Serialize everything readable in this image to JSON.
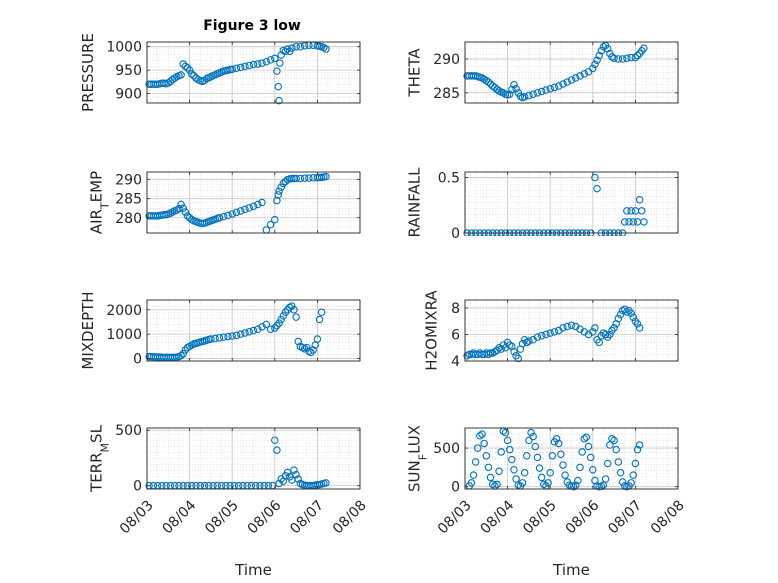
{
  "figure": {
    "title": "Figure 3 low",
    "marker_color": "#0072BD"
  },
  "chart_data": [
    {
      "type": "scatter",
      "ylabel": "PRESSURE",
      "xlim": [
        0,
        5
      ],
      "ylim": [
        880,
        1010
      ],
      "yticks": [
        900,
        950,
        1000
      ],
      "ytick_labels": [
        "900",
        "950",
        "1000"
      ],
      "grid": true,
      "x": [
        0.05,
        0.1,
        0.15,
        0.2,
        0.25,
        0.3,
        0.35,
        0.4,
        0.45,
        0.5,
        0.55,
        0.6,
        0.65,
        0.7,
        0.75,
        0.8,
        0.85,
        0.9,
        0.95,
        1.0,
        1.05,
        1.1,
        1.15,
        1.2,
        1.25,
        1.3,
        1.35,
        1.4,
        1.45,
        1.5,
        1.55,
        1.6,
        1.65,
        1.7,
        1.75,
        1.8,
        1.85,
        1.9,
        1.95,
        2.0,
        2.1,
        2.2,
        2.3,
        2.4,
        2.5,
        2.6,
        2.7,
        2.8,
        2.9,
        3.0,
        3.05,
        3.08,
        3.1,
        3.12,
        3.15,
        3.2,
        3.25,
        3.3,
        3.35,
        3.4,
        3.5,
        3.6,
        3.7,
        3.8,
        3.9,
        4.0,
        4.05,
        4.1,
        4.15,
        4.2
      ],
      "y": [
        920,
        920,
        920,
        920,
        920,
        921,
        922,
        922,
        921,
        923,
        926,
        930,
        933,
        936,
        938,
        940,
        963,
        958,
        955,
        950,
        942,
        938,
        933,
        930,
        928,
        926,
        928,
        932,
        934,
        936,
        938,
        940,
        942,
        944,
        946,
        948,
        949,
        950,
        951,
        952,
        954,
        956,
        958,
        960,
        962,
        963,
        965,
        968,
        972,
        975,
        948,
        915,
        885,
        965,
        982,
        992,
        990,
        995,
        990,
        997,
        1000,
        1000,
        1002,
        1003,
        1003,
        1002,
        1001,
        1000,
        998,
        995
      ]
    },
    {
      "type": "scatter",
      "ylabel": "THETA",
      "xlim": [
        0,
        5
      ],
      "ylim": [
        283.5,
        292.5
      ],
      "yticks": [
        285,
        290
      ],
      "ytick_labels": [
        "285",
        "290"
      ],
      "grid": true,
      "x": [
        0.05,
        0.1,
        0.15,
        0.2,
        0.25,
        0.3,
        0.35,
        0.4,
        0.45,
        0.5,
        0.55,
        0.6,
        0.65,
        0.7,
        0.75,
        0.8,
        0.85,
        0.9,
        0.95,
        1.0,
        1.05,
        1.1,
        1.15,
        1.2,
        1.25,
        1.3,
        1.35,
        1.4,
        1.5,
        1.6,
        1.7,
        1.8,
        1.9,
        2.0,
        2.1,
        2.2,
        2.3,
        2.4,
        2.5,
        2.6,
        2.7,
        2.8,
        2.9,
        3.0,
        3.05,
        3.1,
        3.15,
        3.2,
        3.25,
        3.3,
        3.35,
        3.4,
        3.45,
        3.5,
        3.6,
        3.7,
        3.8,
        3.9,
        4.0,
        4.05,
        4.1,
        4.15,
        4.2
      ],
      "y": [
        287.5,
        287.5,
        287.5,
        287.5,
        287.5,
        287.4,
        287.3,
        287.2,
        287.0,
        286.8,
        286.6,
        286.3,
        286.0,
        285.8,
        285.5,
        285.3,
        285.1,
        285.0,
        284.8,
        284.7,
        284.8,
        285.5,
        286.2,
        285.6,
        285.0,
        284.5,
        284.3,
        284.4,
        284.6,
        284.8,
        285.0,
        285.2,
        285.4,
        285.6,
        285.8,
        286.0,
        286.3,
        286.6,
        286.9,
        287.2,
        287.5,
        287.8,
        288.1,
        288.6,
        289.2,
        289.8,
        290.5,
        291.2,
        291.8,
        292.0,
        291.5,
        290.8,
        290.3,
        290.1,
        290.0,
        290.0,
        290.1,
        290.2,
        290.2,
        290.5,
        290.8,
        291.2,
        291.6
      ]
    },
    {
      "type": "scatter",
      "ylabel": "AIR_TEMP",
      "xlim": [
        0,
        5
      ],
      "ylim": [
        276,
        292
      ],
      "yticks": [
        280,
        285,
        290
      ],
      "ytick_labels": [
        "280",
        "285",
        "290"
      ],
      "grid": true,
      "x": [
        0.05,
        0.1,
        0.15,
        0.2,
        0.25,
        0.3,
        0.35,
        0.4,
        0.45,
        0.5,
        0.55,
        0.6,
        0.65,
        0.7,
        0.75,
        0.8,
        0.85,
        0.9,
        0.95,
        1.0,
        1.05,
        1.1,
        1.15,
        1.2,
        1.25,
        1.3,
        1.35,
        1.4,
        1.45,
        1.5,
        1.55,
        1.6,
        1.65,
        1.7,
        1.8,
        1.9,
        2.0,
        2.1,
        2.2,
        2.3,
        2.4,
        2.5,
        2.6,
        2.7,
        2.8,
        2.9,
        3.0,
        3.05,
        3.08,
        3.1,
        3.15,
        3.2,
        3.25,
        3.3,
        3.35,
        3.4,
        3.45,
        3.5,
        3.6,
        3.7,
        3.8,
        3.9,
        4.0,
        4.05,
        4.1,
        4.15,
        4.2
      ],
      "y": [
        280.5,
        280.5,
        280.5,
        280.5,
        280.5,
        280.6,
        280.7,
        280.8,
        280.8,
        281.0,
        281.2,
        281.5,
        281.8,
        282.0,
        282.4,
        283.5,
        282.5,
        281.5,
        280.5,
        280.0,
        279.5,
        279.2,
        279.0,
        278.8,
        278.6,
        278.5,
        278.6,
        278.8,
        279.0,
        279.2,
        279.4,
        279.6,
        279.8,
        280.0,
        280.3,
        280.6,
        281.0,
        281.4,
        281.8,
        282.2,
        282.6,
        283.0,
        283.5,
        284.0,
        276.8,
        278.2,
        279.5,
        284.5,
        286.0,
        287.0,
        288.0,
        289.0,
        289.5,
        290.0,
        290.2,
        290.3,
        290.3,
        290.3,
        290.3,
        290.4,
        290.4,
        290.5,
        290.5,
        290.6,
        290.6,
        290.7,
        290.8
      ]
    },
    {
      "type": "scatter",
      "ylabel": "RAINFALL",
      "xlim": [
        0,
        5
      ],
      "ylim": [
        0,
        0.55
      ],
      "yticks": [
        0,
        0.5
      ],
      "ytick_labels": [
        "0",
        "0.5"
      ],
      "grid": true,
      "x": [
        0.05,
        0.15,
        0.25,
        0.35,
        0.45,
        0.55,
        0.65,
        0.75,
        0.85,
        0.95,
        1.05,
        1.15,
        1.25,
        1.35,
        1.45,
        1.55,
        1.65,
        1.75,
        1.85,
        1.95,
        2.05,
        2.15,
        2.25,
        2.35,
        2.45,
        2.55,
        2.65,
        2.75,
        2.85,
        2.95,
        3.05,
        3.1,
        3.2,
        3.3,
        3.4,
        3.5,
        3.6,
        3.7,
        3.75,
        3.8,
        3.85,
        3.9,
        3.95,
        4.0,
        4.05,
        4.1,
        4.15,
        4.2
      ],
      "y": [
        0,
        0,
        0,
        0,
        0,
        0,
        0,
        0,
        0,
        0,
        0,
        0,
        0,
        0,
        0,
        0,
        0,
        0,
        0,
        0,
        0,
        0,
        0,
        0,
        0,
        0,
        0,
        0,
        0,
        0,
        0.5,
        0.4,
        0,
        0,
        0,
        0,
        0,
        0,
        0.1,
        0.2,
        0.1,
        0.2,
        0.1,
        0.2,
        0.1,
        0.3,
        0.2,
        0.1
      ]
    },
    {
      "type": "scatter",
      "ylabel": "MIXDEPTH",
      "xlim": [
        0,
        5
      ],
      "ylim": [
        -100,
        2400
      ],
      "yticks": [
        0,
        1000,
        2000
      ],
      "ytick_labels": [
        "0",
        "1000",
        "2000"
      ],
      "grid": true,
      "x": [
        0.05,
        0.1,
        0.15,
        0.2,
        0.25,
        0.3,
        0.35,
        0.4,
        0.45,
        0.5,
        0.55,
        0.6,
        0.65,
        0.7,
        0.75,
        0.8,
        0.85,
        0.9,
        0.95,
        1.0,
        1.05,
        1.1,
        1.15,
        1.2,
        1.25,
        1.3,
        1.35,
        1.4,
        1.45,
        1.5,
        1.6,
        1.7,
        1.8,
        1.9,
        2.0,
        2.1,
        2.2,
        2.3,
        2.4,
        2.5,
        2.6,
        2.7,
        2.8,
        2.9,
        3.0,
        3.05,
        3.1,
        3.15,
        3.2,
        3.25,
        3.3,
        3.35,
        3.4,
        3.45,
        3.5,
        3.55,
        3.6,
        3.65,
        3.7,
        3.75,
        3.8,
        3.85,
        3.9,
        3.95,
        4.0,
        4.05,
        4.1
      ],
      "y": [
        80,
        80,
        75,
        70,
        65,
        60,
        55,
        50,
        50,
        50,
        50,
        50,
        50,
        60,
        80,
        120,
        200,
        350,
        450,
        500,
        550,
        600,
        620,
        650,
        680,
        700,
        720,
        750,
        780,
        800,
        820,
        850,
        880,
        900,
        920,
        950,
        1000,
        1050,
        1100,
        1150,
        1200,
        1300,
        1400,
        1200,
        1250,
        1350,
        1450,
        1600,
        1750,
        1900,
        2000,
        2100,
        2150,
        2000,
        1700,
        700,
        500,
        450,
        400,
        450,
        300,
        250,
        350,
        550,
        800,
        1600,
        1900
      ]
    },
    {
      "type": "scatter",
      "ylabel": "H2OMIXRA",
      "xlim": [
        0,
        5
      ],
      "ylim": [
        4,
        8.6
      ],
      "yticks": [
        4,
        6,
        8
      ],
      "ytick_labels": [
        "4",
        "6",
        "8"
      ],
      "grid": true,
      "x": [
        0.05,
        0.1,
        0.15,
        0.2,
        0.25,
        0.3,
        0.35,
        0.4,
        0.45,
        0.5,
        0.55,
        0.6,
        0.65,
        0.7,
        0.75,
        0.8,
        0.85,
        0.9,
        0.95,
        1.0,
        1.05,
        1.1,
        1.15,
        1.2,
        1.25,
        1.3,
        1.35,
        1.4,
        1.45,
        1.5,
        1.6,
        1.7,
        1.8,
        1.9,
        2.0,
        2.1,
        2.2,
        2.3,
        2.4,
        2.5,
        2.6,
        2.7,
        2.8,
        2.9,
        3.0,
        3.05,
        3.1,
        3.15,
        3.2,
        3.25,
        3.3,
        3.35,
        3.4,
        3.45,
        3.5,
        3.55,
        3.6,
        3.65,
        3.7,
        3.75,
        3.8,
        3.85,
        3.9,
        3.95,
        4.0,
        4.05,
        4.1
      ],
      "y": [
        4.4,
        4.5,
        4.5,
        4.6,
        4.5,
        4.5,
        4.6,
        4.5,
        4.5,
        4.6,
        4.5,
        4.6,
        4.6,
        4.7,
        4.8,
        5.0,
        4.9,
        5.2,
        5.0,
        5.4,
        5.2,
        5.1,
        4.7,
        4.4,
        4.2,
        4.9,
        5.3,
        5.6,
        5.4,
        5.5,
        5.6,
        5.8,
        5.9,
        6.0,
        6.1,
        6.2,
        6.3,
        6.5,
        6.6,
        6.7,
        6.6,
        6.4,
        6.2,
        6.0,
        6.2,
        6.5,
        5.6,
        5.4,
        5.9,
        6.1,
        6.0,
        5.8,
        6.0,
        6.3,
        6.5,
        6.8,
        7.2,
        7.5,
        7.8,
        7.9,
        7.7,
        7.8,
        7.6,
        7.3,
        7.0,
        6.8,
        6.5
      ]
    },
    {
      "type": "scatter",
      "ylabel": "TERR_MSL",
      "xlim": [
        0,
        5
      ],
      "ylim": [
        -30,
        520
      ],
      "yticks": [
        0,
        500
      ],
      "ytick_labels": [
        "0",
        "500"
      ],
      "xticks": [
        0,
        1,
        2,
        3,
        4,
        5
      ],
      "xtick_labels": [
        "08/03",
        "08/04",
        "08/05",
        "08/06",
        "08/07",
        "08/08"
      ],
      "xlabel": "Time",
      "grid": true,
      "x": [
        0.05,
        0.15,
        0.25,
        0.35,
        0.45,
        0.55,
        0.65,
        0.75,
        0.85,
        0.95,
        1.05,
        1.15,
        1.25,
        1.35,
        1.45,
        1.55,
        1.65,
        1.75,
        1.85,
        1.95,
        2.05,
        2.15,
        2.25,
        2.35,
        2.45,
        2.55,
        2.65,
        2.75,
        2.85,
        2.95,
        3.0,
        3.05,
        3.1,
        3.15,
        3.2,
        3.25,
        3.3,
        3.35,
        3.4,
        3.45,
        3.5,
        3.55,
        3.6,
        3.65,
        3.7,
        3.75,
        3.8,
        3.85,
        3.9,
        3.95,
        4.0,
        4.05,
        4.1,
        4.15,
        4.2
      ],
      "y": [
        0,
        0,
        0,
        0,
        0,
        0,
        0,
        0,
        0,
        0,
        0,
        0,
        0,
        0,
        0,
        0,
        0,
        0,
        0,
        0,
        0,
        0,
        0,
        0,
        0,
        0,
        0,
        0,
        0,
        0,
        410,
        320,
        20,
        60,
        40,
        90,
        120,
        80,
        50,
        140,
        100,
        60,
        20,
        10,
        5,
        0,
        0,
        0,
        0,
        5,
        10,
        10,
        15,
        20,
        25
      ]
    },
    {
      "type": "scatter",
      "ylabel": "SUN_FLUX",
      "xlim": [
        0,
        5
      ],
      "ylim": [
        -30,
        760
      ],
      "yticks": [
        0,
        500
      ],
      "ytick_labels": [
        "0",
        "500"
      ],
      "xticks": [
        0,
        1,
        2,
        3,
        4,
        5
      ],
      "xtick_labels": [
        "08/03",
        "08/04",
        "08/05",
        "08/06",
        "08/07",
        "08/08"
      ],
      "xlabel": "Time",
      "grid": true,
      "x": [
        0.1,
        0.15,
        0.2,
        0.25,
        0.3,
        0.35,
        0.4,
        0.45,
        0.5,
        0.55,
        0.6,
        0.65,
        0.7,
        0.75,
        0.8,
        0.85,
        0.9,
        0.95,
        1.0,
        1.05,
        1.1,
        1.15,
        1.2,
        1.25,
        1.3,
        1.35,
        1.4,
        1.45,
        1.5,
        1.55,
        1.6,
        1.65,
        1.7,
        1.75,
        1.8,
        1.85,
        1.9,
        1.95,
        2.0,
        2.05,
        2.1,
        2.15,
        2.2,
        2.25,
        2.3,
        2.35,
        2.4,
        2.45,
        2.5,
        2.55,
        2.6,
        2.65,
        2.7,
        2.75,
        2.8,
        2.85,
        2.9,
        2.95,
        3.0,
        3.05,
        3.1,
        3.15,
        3.2,
        3.25,
        3.3,
        3.35,
        3.4,
        3.45,
        3.5,
        3.55,
        3.6,
        3.65,
        3.7,
        3.75,
        3.8,
        3.85,
        3.9,
        3.95,
        4.0,
        4.05,
        4.1
      ],
      "y": [
        10,
        50,
        150,
        320,
        500,
        660,
        680,
        560,
        400,
        250,
        120,
        30,
        10,
        30,
        200,
        450,
        720,
        700,
        600,
        480,
        350,
        220,
        100,
        20,
        10,
        50,
        180,
        400,
        600,
        700,
        650,
        520,
        380,
        240,
        120,
        30,
        10,
        50,
        180,
        400,
        580,
        620,
        560,
        420,
        280,
        150,
        60,
        20,
        10,
        0,
        20,
        80,
        250,
        450,
        620,
        640,
        520,
        380,
        220,
        80,
        10,
        0,
        5,
        20,
        100,
        300,
        540,
        620,
        600,
        480,
        320,
        180,
        60,
        10,
        0,
        10,
        50,
        150,
        300,
        480,
        540
      ]
    }
  ]
}
